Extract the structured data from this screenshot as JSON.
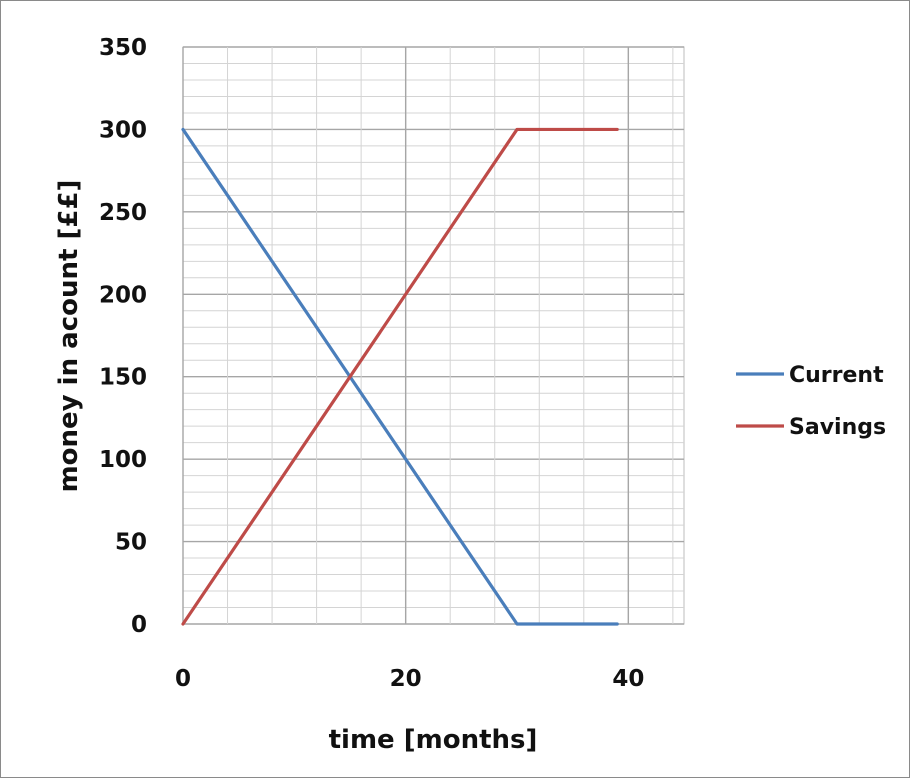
{
  "chart_data": {
    "type": "line",
    "title": "",
    "xlabel": "time [months]",
    "ylabel": "money in acount [££]",
    "xlim": [
      0,
      45
    ],
    "ylim": [
      0,
      350
    ],
    "xticks": [
      0,
      20,
      40
    ],
    "yticks": [
      0,
      50,
      100,
      150,
      200,
      250,
      300,
      350
    ],
    "xtick_labels": [
      "0",
      "20",
      "40"
    ],
    "ytick_labels": [
      "0",
      "50",
      "100",
      "150",
      "200",
      "250",
      "300",
      "350"
    ],
    "grid": true,
    "legend_position": "right",
    "series": [
      {
        "name": "Current",
        "color": "#4a7ebb",
        "x": [
          0,
          30,
          39
        ],
        "y": [
          300,
          0,
          0
        ]
      },
      {
        "name": "Savings",
        "color": "#be4b48",
        "x": [
          0,
          30,
          39
        ],
        "y": [
          0,
          300,
          300
        ]
      }
    ]
  }
}
